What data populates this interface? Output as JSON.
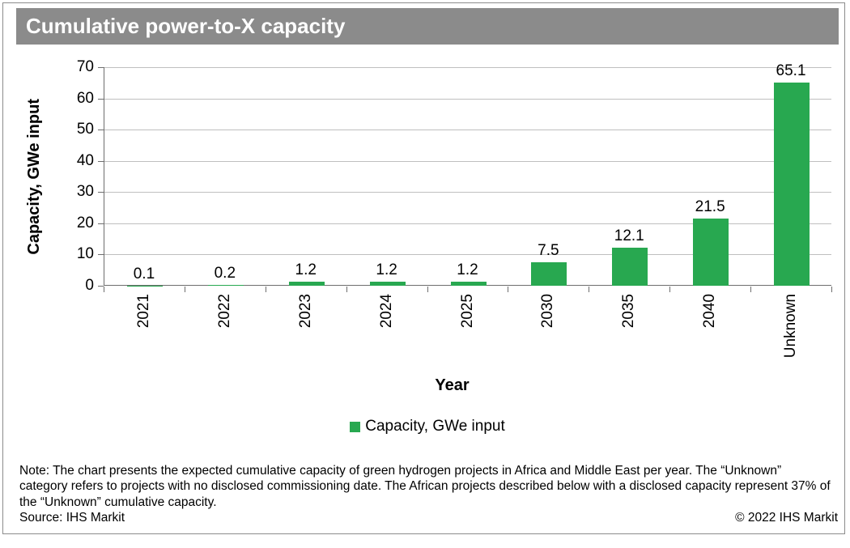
{
  "title_bar": {
    "title": "Cumulative power-to-X capacity"
  },
  "chart_data": {
    "type": "bar",
    "title": "Cumulative power-to-X capacity",
    "categories": [
      "2021",
      "2022",
      "2023",
      "2024",
      "2025",
      "2030",
      "2035",
      "2040",
      "Unknown"
    ],
    "values": [
      0.1,
      0.2,
      1.2,
      1.2,
      1.2,
      7.5,
      12.1,
      21.5,
      65.1
    ],
    "data_labels": [
      "0.1",
      "0.2",
      "1.2",
      "1.2",
      "1.2",
      "7.5",
      "12.1",
      "21.5",
      "65.1"
    ],
    "xlabel": "Year",
    "ylabel": "Capacity, GWe input",
    "ylim": [
      0,
      70
    ],
    "yticks": [
      0,
      10,
      20,
      30,
      40,
      50,
      60,
      70
    ],
    "grid": true,
    "x_labels_rotated": "90deg bottom-to-top",
    "legend": {
      "position": "bottom",
      "entries": [
        {
          "label": "Capacity, GWe input",
          "color": "#28a850"
        }
      ]
    }
  },
  "footer": {
    "note": "Note: The chart presents the expected cumulative capacity of green hydrogen projects in Africa and Middle East per year. The “Unknown” category refers to projects with no disclosed commissioning date. The African projects described below with a disclosed capacity represent 37% of the “Unknown” cumulative capacity.",
    "source": "Source: IHS Markit",
    "copyright": "© 2022 IHS Markit"
  },
  "colors": {
    "bar": "#28a850",
    "title_bar_bg": "#8b8b8b",
    "title_bar_fg": "#ffffff",
    "gridline": "#bfbfbf",
    "axis": "#6e6e6e",
    "border": "#8c8c8c",
    "text": "#000000",
    "background": "#ffffff"
  }
}
